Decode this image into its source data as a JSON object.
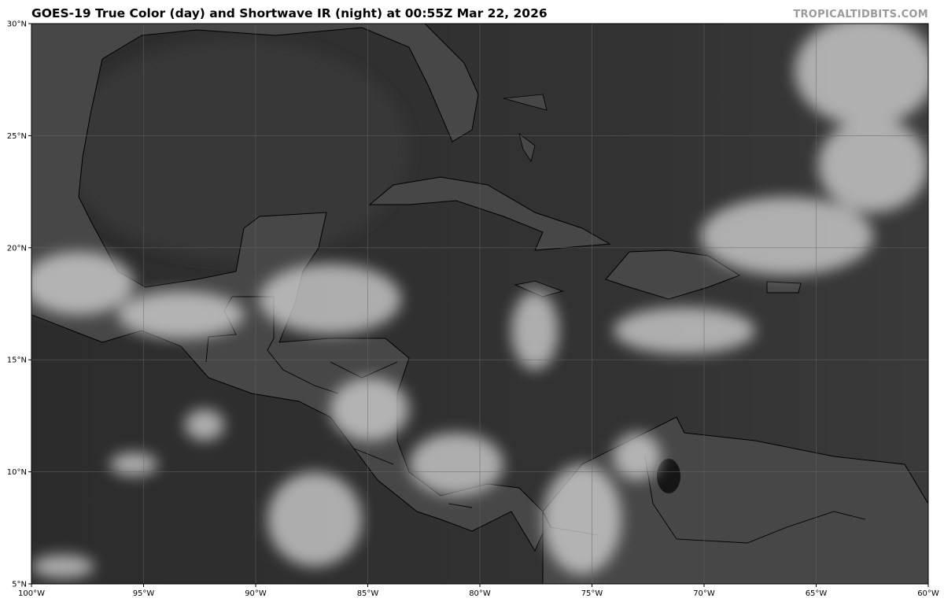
{
  "header": {
    "title": "GOES-19 True Color (day) and Shortwave IR (night) at 00:55Z Mar 22, 2026",
    "credit": "TROPICALTIDBITS.COM"
  },
  "map": {
    "projection": "equirectangular",
    "extent": {
      "lon": [
        -100,
        -60
      ],
      "lat": [
        5,
        30
      ]
    },
    "grid": true,
    "colors": {
      "ocean": "#2e2e2e",
      "land": "#4a4a4a",
      "cloud": "#e0e0e0",
      "coastline": "#000000",
      "grid": "#555555"
    },
    "lon_ticks": [
      {
        "value": -100,
        "label": "100°W"
      },
      {
        "value": -95,
        "label": "95°W"
      },
      {
        "value": -90,
        "label": "90°W"
      },
      {
        "value": -85,
        "label": "85°W"
      },
      {
        "value": -80,
        "label": "80°W"
      },
      {
        "value": -75,
        "label": "75°W"
      },
      {
        "value": -70,
        "label": "70°W"
      },
      {
        "value": -65,
        "label": "65°W"
      },
      {
        "value": -60,
        "label": "60°W"
      }
    ],
    "lat_ticks": [
      {
        "value": 5,
        "label": "5°N"
      },
      {
        "value": 10,
        "label": "10°N"
      },
      {
        "value": 15,
        "label": "15°N"
      },
      {
        "value": 20,
        "label": "20°N"
      },
      {
        "value": 25,
        "label": "25°N"
      },
      {
        "value": 30,
        "label": "30°N"
      }
    ]
  }
}
